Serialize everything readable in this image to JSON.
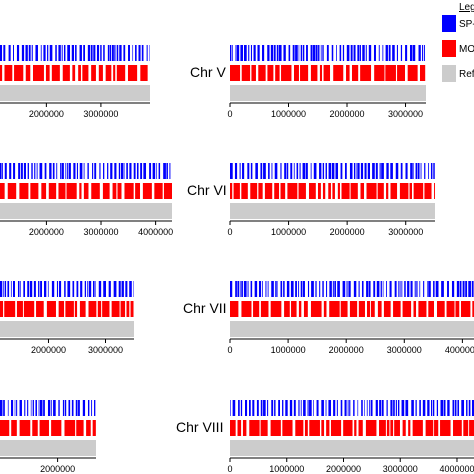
{
  "chart_data": {
    "type": "track",
    "legend": {
      "title": "Leg",
      "entries": [
        {
          "label": "SP-",
          "color": "#0000ff"
        },
        {
          "label": "MO",
          "color": "#ff0000"
        },
        {
          "label": "Refe",
          "color": "#cccccc"
        }
      ]
    },
    "tick_labels": [
      "0",
      "1000000",
      "2000000",
      "3000000",
      "4000000"
    ],
    "panels": [
      {
        "label": "",
        "length": 3900000,
        "visible_x_range": [
          1150000,
          3900000
        ],
        "ticks": [
          2000000,
          3000000
        ]
      },
      {
        "label": "",
        "length": 4300000,
        "visible_x_range": [
          1150000,
          4300000
        ],
        "ticks": [
          2000000,
          3000000,
          4000000
        ]
      },
      {
        "label": "",
        "length": 3500000,
        "visible_x_range": [
          1150000,
          3500000
        ],
        "ticks": [
          2000000,
          3000000
        ]
      },
      {
        "label": "",
        "length": 2500000,
        "visible_x_range": [
          1250000,
          2500000
        ],
        "ticks": [
          2000000
        ]
      },
      {
        "label": "Chr V",
        "length": 3350000,
        "visible_x_range": [
          0,
          3350000
        ],
        "ticks": [
          0,
          1000000,
          2000000,
          3000000
        ]
      },
      {
        "label": "Chr VI",
        "length": 3500000,
        "visible_x_range": [
          0,
          3500000
        ],
        "ticks": [
          0,
          1000000,
          2000000,
          3000000
        ]
      },
      {
        "label": "Chr VII",
        "length": 4200000,
        "visible_x_range": [
          0,
          4200000
        ],
        "ticks": [
          0,
          1000000,
          2000000,
          3000000,
          4000000
        ]
      },
      {
        "label": "Chr VIII",
        "length": 4300000,
        "visible_x_range": [
          0,
          4300000
        ],
        "ticks": [
          0,
          1000000,
          2000000,
          3000000,
          4000000
        ]
      }
    ],
    "tracks": [
      {
        "name": "SP-",
        "color": "#0000ff"
      },
      {
        "name": "MO",
        "color": "#ff0000"
      },
      {
        "name": "Refe",
        "color": "#cccccc"
      }
    ],
    "grid": false
  }
}
